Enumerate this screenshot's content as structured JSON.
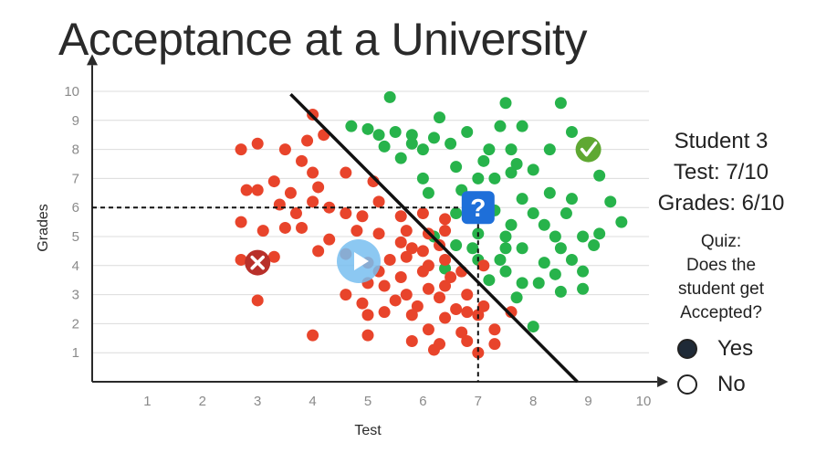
{
  "title": "Acceptance at a University",
  "chart_data": {
    "type": "scatter",
    "xlabel": "Test",
    "ylabel": "Grades",
    "xlim": [
      0,
      10
    ],
    "ylim": [
      0,
      10
    ],
    "x_ticks": [
      "1",
      "2",
      "3",
      "4",
      "5",
      "6",
      "7",
      "8",
      "9",
      "10"
    ],
    "y_ticks": [
      "1",
      "2",
      "3",
      "4",
      "5",
      "6",
      "7",
      "8",
      "9",
      "10"
    ],
    "grid": "horizontal",
    "colors": {
      "accepted": "#27b34b",
      "rejected": "#e8442b",
      "boundary": "#111111",
      "question": "#1e6fd9"
    },
    "boundary_line": [
      [
        3.6,
        9.9
      ],
      [
        8.8,
        0
      ]
    ],
    "query_point": {
      "x": 7,
      "y": 6,
      "marker": "question-icon"
    },
    "accepted_example": {
      "x": 9,
      "y": 8,
      "marker": "check-icon"
    },
    "rejected_example": {
      "x": 3,
      "y": 4.1,
      "marker": "cross-icon"
    },
    "series": [
      {
        "label": "accepted",
        "points": [
          [
            5.4,
            9.8
          ],
          [
            7.5,
            9.6
          ],
          [
            8.5,
            9.6
          ],
          [
            6.3,
            9.1
          ],
          [
            4.7,
            8.8
          ],
          [
            5.0,
            8.7
          ],
          [
            5.2,
            8.5
          ],
          [
            5.5,
            8.6
          ],
          [
            5.8,
            8.5
          ],
          [
            6.2,
            8.4
          ],
          [
            6.8,
            8.6
          ],
          [
            7.4,
            8.8
          ],
          [
            7.8,
            8.8
          ],
          [
            8.7,
            8.6
          ],
          [
            5.3,
            8.1
          ],
          [
            5.8,
            8.2
          ],
          [
            6.0,
            8.0
          ],
          [
            6.5,
            8.2
          ],
          [
            7.2,
            8.0
          ],
          [
            7.6,
            8.0
          ],
          [
            8.3,
            8.0
          ],
          [
            5.6,
            7.7
          ],
          [
            6.6,
            7.4
          ],
          [
            7.1,
            7.6
          ],
          [
            7.7,
            7.5
          ],
          [
            8.0,
            7.3
          ],
          [
            7.6,
            7.2
          ],
          [
            7.0,
            7.0
          ],
          [
            7.3,
            7.0
          ],
          [
            6.0,
            7.0
          ],
          [
            9.2,
            7.1
          ],
          [
            6.7,
            6.6
          ],
          [
            6.1,
            6.5
          ],
          [
            8.3,
            6.5
          ],
          [
            8.7,
            6.3
          ],
          [
            7.8,
            6.3
          ],
          [
            9.4,
            6.2
          ],
          [
            6.6,
            5.8
          ],
          [
            7.3,
            5.9
          ],
          [
            8.0,
            5.8
          ],
          [
            8.6,
            5.8
          ],
          [
            7.6,
            5.4
          ],
          [
            8.2,
            5.4
          ],
          [
            9.6,
            5.5
          ],
          [
            6.2,
            5.0
          ],
          [
            7.0,
            5.1
          ],
          [
            7.5,
            5.0
          ],
          [
            8.4,
            5.0
          ],
          [
            8.9,
            5.0
          ],
          [
            9.2,
            5.1
          ],
          [
            6.6,
            4.7
          ],
          [
            6.9,
            4.6
          ],
          [
            7.5,
            4.6
          ],
          [
            7.8,
            4.6
          ],
          [
            8.5,
            4.6
          ],
          [
            9.1,
            4.7
          ],
          [
            7.0,
            4.2
          ],
          [
            7.4,
            4.2
          ],
          [
            8.2,
            4.1
          ],
          [
            8.7,
            4.2
          ],
          [
            6.4,
            3.9
          ],
          [
            7.5,
            3.8
          ],
          [
            8.4,
            3.7
          ],
          [
            8.9,
            3.8
          ],
          [
            7.2,
            3.5
          ],
          [
            7.8,
            3.4
          ],
          [
            8.1,
            3.4
          ],
          [
            8.5,
            3.1
          ],
          [
            8.9,
            3.2
          ],
          [
            7.7,
            2.9
          ],
          [
            8.0,
            1.9
          ]
        ]
      },
      {
        "label": "rejected",
        "points": [
          [
            4.0,
            9.2
          ],
          [
            2.7,
            8.0
          ],
          [
            3.0,
            8.2
          ],
          [
            3.5,
            8.0
          ],
          [
            3.9,
            8.3
          ],
          [
            4.2,
            8.5
          ],
          [
            3.8,
            7.6
          ],
          [
            4.0,
            7.2
          ],
          [
            4.6,
            7.2
          ],
          [
            2.8,
            6.6
          ],
          [
            3.0,
            6.6
          ],
          [
            3.3,
            6.9
          ],
          [
            3.6,
            6.5
          ],
          [
            4.1,
            6.7
          ],
          [
            5.1,
            6.9
          ],
          [
            3.4,
            6.1
          ],
          [
            3.7,
            5.8
          ],
          [
            4.0,
            6.2
          ],
          [
            4.3,
            6.0
          ],
          [
            4.6,
            5.8
          ],
          [
            4.9,
            5.7
          ],
          [
            5.2,
            6.2
          ],
          [
            5.6,
            5.7
          ],
          [
            6.0,
            5.8
          ],
          [
            6.4,
            5.6
          ],
          [
            2.7,
            5.5
          ],
          [
            3.1,
            5.2
          ],
          [
            3.5,
            5.3
          ],
          [
            3.8,
            5.3
          ],
          [
            4.3,
            4.9
          ],
          [
            4.8,
            5.2
          ],
          [
            5.2,
            5.1
          ],
          [
            5.7,
            5.2
          ],
          [
            6.1,
            5.1
          ],
          [
            6.4,
            5.2
          ],
          [
            5.6,
            4.8
          ],
          [
            5.8,
            4.6
          ],
          [
            6.0,
            4.5
          ],
          [
            6.3,
            4.7
          ],
          [
            3.3,
            4.3
          ],
          [
            2.7,
            4.2
          ],
          [
            4.1,
            4.5
          ],
          [
            4.6,
            4.4
          ],
          [
            5.0,
            4.1
          ],
          [
            5.4,
            4.2
          ],
          [
            5.7,
            4.3
          ],
          [
            6.1,
            4.0
          ],
          [
            6.4,
            4.2
          ],
          [
            7.1,
            4.0
          ],
          [
            5.2,
            3.8
          ],
          [
            5.6,
            3.6
          ],
          [
            6.0,
            3.8
          ],
          [
            6.7,
            3.8
          ],
          [
            4.6,
            3.0
          ],
          [
            5.0,
            3.4
          ],
          [
            5.3,
            3.3
          ],
          [
            5.7,
            3.0
          ],
          [
            6.1,
            3.2
          ],
          [
            6.4,
            3.3
          ],
          [
            6.8,
            3.0
          ],
          [
            6.5,
            3.6
          ],
          [
            4.9,
            2.7
          ],
          [
            5.5,
            2.8
          ],
          [
            5.9,
            2.6
          ],
          [
            6.3,
            2.9
          ],
          [
            6.6,
            2.5
          ],
          [
            7.0,
            2.3
          ],
          [
            5.3,
            2.4
          ],
          [
            5.8,
            2.3
          ],
          [
            6.4,
            2.2
          ],
          [
            6.8,
            2.4
          ],
          [
            5.0,
            2.3
          ],
          [
            6.1,
            1.8
          ],
          [
            6.7,
            1.7
          ],
          [
            7.3,
            1.8
          ],
          [
            7.1,
            2.6
          ],
          [
            7.6,
            2.4
          ],
          [
            5.8,
            1.4
          ],
          [
            6.3,
            1.3
          ],
          [
            6.8,
            1.4
          ],
          [
            7.3,
            1.3
          ],
          [
            6.2,
            1.1
          ],
          [
            4.0,
            1.6
          ],
          [
            5.0,
            1.6
          ],
          [
            7.0,
            1.0
          ],
          [
            3.0,
            2.8
          ]
        ]
      }
    ]
  },
  "side": {
    "student_line1": "Student 3",
    "student_line2": "Test: 7/10",
    "student_line3": "Grades: 6/10",
    "quiz_line1": "Quiz:",
    "quiz_line2": "Does the",
    "quiz_line3": "student get",
    "quiz_line4": "Accepted?",
    "option_yes": "Yes",
    "option_no": "No"
  }
}
